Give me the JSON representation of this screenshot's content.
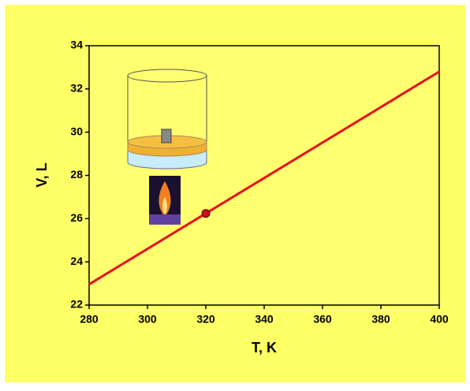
{
  "chart_data": {
    "type": "line",
    "xlabel": "T, K",
    "ylabel": "V, L",
    "series": [
      {
        "color": "#e8101a",
        "x": [
          280,
          400
        ],
        "values": [
          22.96,
          32.8
        ]
      },
      {
        "color": "#c8101a",
        "x": [
          320
        ],
        "values": [
          26.24
        ],
        "marker": true
      }
    ],
    "xlim": [
      280,
      400
    ],
    "xticks": [
      280,
      300,
      320,
      340,
      360,
      380,
      400
    ],
    "ylim": [
      22,
      34
    ],
    "yticks": [
      22,
      24,
      26,
      28,
      30,
      32,
      34
    ],
    "grid": false
  }
}
